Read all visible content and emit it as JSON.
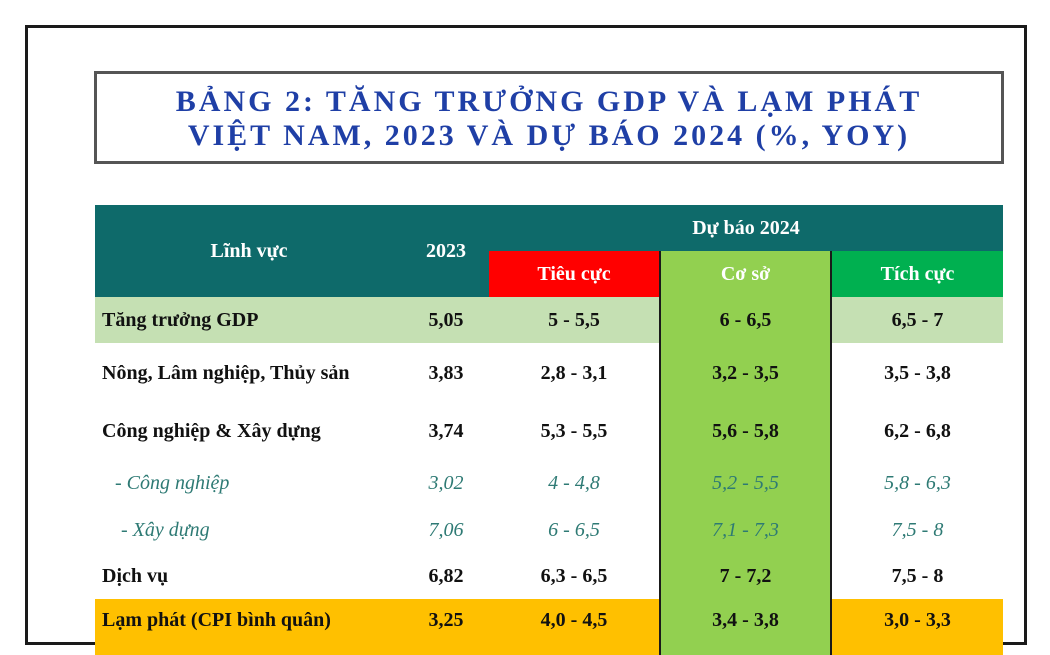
{
  "title": {
    "line1": "BẢNG 2: TĂNG TRƯỞNG GDP VÀ LẠM PHÁT",
    "line2": "VIỆT NAM, 2023 VÀ DỰ BÁO 2024 (%, YOY)"
  },
  "table": {
    "headers": {
      "sector": "Lĩnh vực",
      "year": "2023",
      "forecast": "Dự báo 2024",
      "negative": "Tiêu cực",
      "base": "Cơ sở",
      "positive": "Tích cực"
    },
    "rows": [
      {
        "label": "Tăng trưởng GDP",
        "y2023": "5,05",
        "negative": "5 - 5,5",
        "base": "6 - 6,5",
        "positive": "6,5 - 7"
      },
      {
        "label": "Nông, Lâm nghiệp, Thủy sản",
        "y2023": "3,83",
        "negative": "2,8 - 3,1",
        "base": "3,2 - 3,5",
        "positive": "3,5 - 3,8"
      },
      {
        "label": "Công nghiệp & Xây dựng",
        "y2023": "3,74",
        "negative": "5,3 - 5,5",
        "base": "5,6 - 5,8",
        "positive": "6,2 - 6,8"
      },
      {
        "label": "- Công nghiệp",
        "y2023": "3,02",
        "negative": "4 - 4,8",
        "base": "5,2 - 5,5",
        "positive": "5,8 - 6,3"
      },
      {
        "label": "- Xây dựng",
        "y2023": "7,06",
        "negative": "6 - 6,5",
        "base": "7,1 - 7,3",
        "positive": "7,5 - 8"
      },
      {
        "label": "Dịch vụ",
        "y2023": "6,82",
        "negative": "6,3 - 6,5",
        "base": "7 - 7,2",
        "positive": "7,5 - 8"
      },
      {
        "label": "Lạm phát (CPI bình quân)",
        "y2023": "3,25",
        "negative": "4,0 - 4,5",
        "base": "3,4 - 3,8",
        "positive": "3,0 - 3,3"
      }
    ]
  },
  "colors": {
    "header_teal": "#0e6a6a",
    "negative_red": "#ff0000",
    "base_green": "#92d050",
    "positive_green": "#00b050",
    "gdp_row": "#c5e0b3",
    "inflation_row": "#ffc000",
    "title_blue": "#1f3fa6",
    "sub_row_text": "#2e7a74"
  }
}
